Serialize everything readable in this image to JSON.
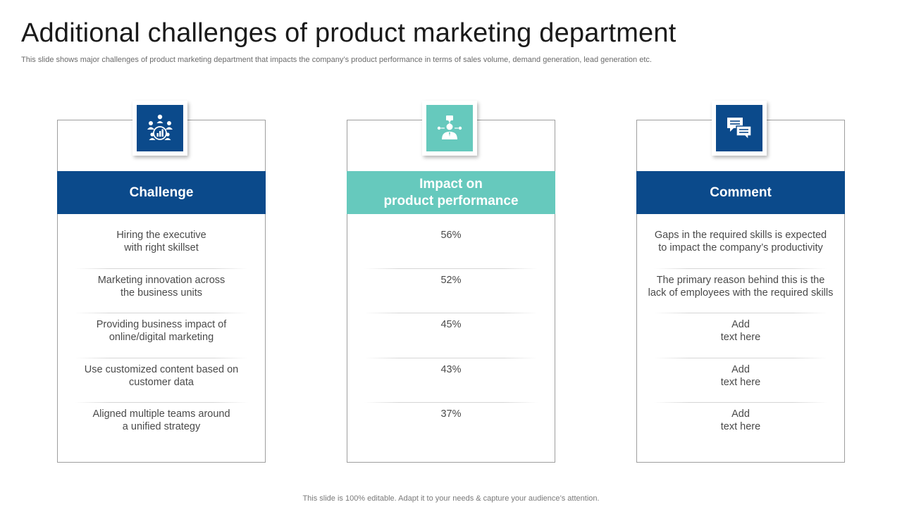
{
  "slide": {
    "title": "Additional challenges of product marketing department",
    "subtitle": "This slide shows major challenges of product marketing department that impacts the company’s product performance in terms of sales volume, demand generation, lead generation etc.",
    "footer": "This slide is 100% editable. Adapt it to your needs & capture your audience’s attention."
  },
  "colors": {
    "navy": "#0b4a8b",
    "teal": "#66c9bd"
  },
  "columns": [
    {
      "icon": "team-meeting-icon",
      "header": "Challenge",
      "rows": [
        "Hiring the executive\nwith right skillset",
        "Marketing innovation across\nthe business units",
        "Providing business impact of\nonline/digital  marketing",
        "Use customized content based on\ncustomer data",
        "Aligned multiple teams around\na unified strategy"
      ]
    },
    {
      "icon": "presenter-icon",
      "header": "Impact on\nproduct performance",
      "rows": [
        "56%",
        "52%",
        "45%",
        "43%",
        "37%"
      ]
    },
    {
      "icon": "chat-bubbles-icon",
      "header": "Comment",
      "rows": [
        "Gaps in the required skills is expected\nto impact the company’s productivity",
        "The primary reason behind this is the\nlack of employees with the required skills",
        "Add\ntext here",
        "Add\ntext here",
        "Add\ntext here"
      ]
    }
  ]
}
